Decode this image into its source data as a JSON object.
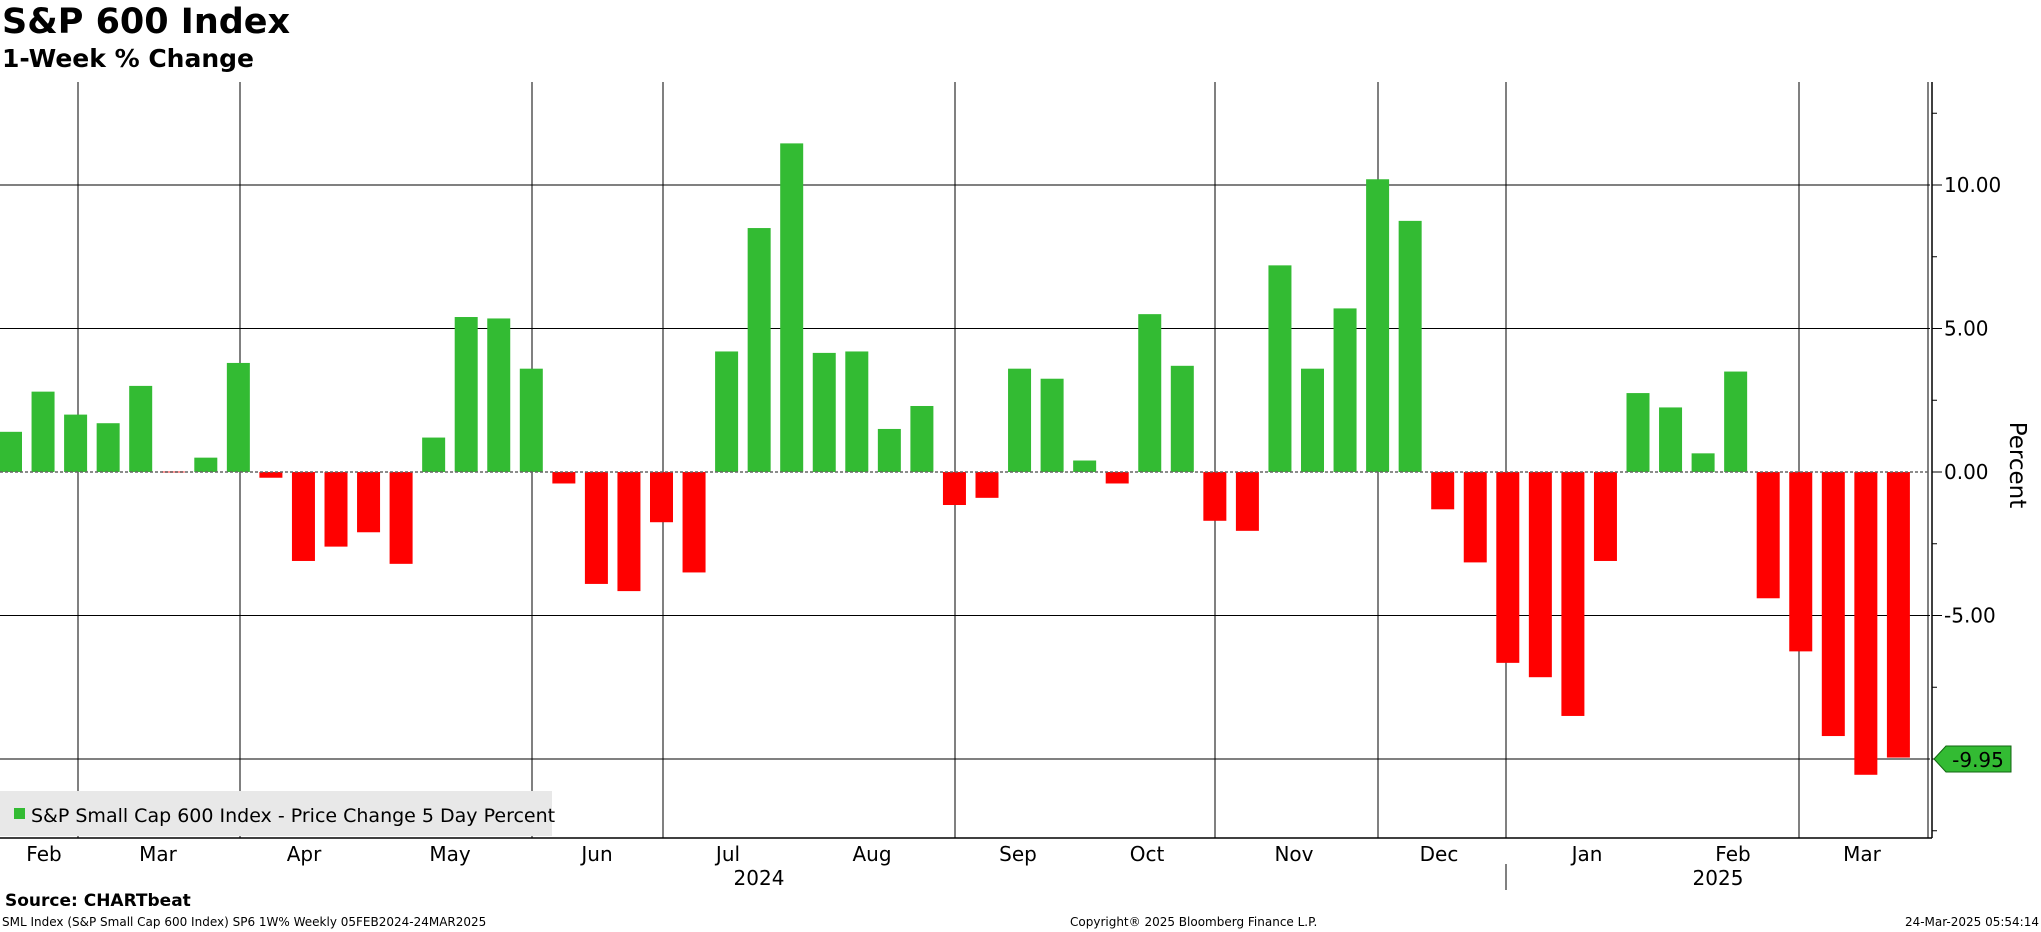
{
  "title": "S&P 600 Index",
  "subtitle": "1-Week % Change",
  "source": "Source: CHARTbeat",
  "footer": {
    "left": "SML Index (S&P Small Cap 600 Index) SP6 1W%  Weekly 05FEB2024-24MAR2025",
    "center": "Copyright® 2025 Bloomberg Finance L.P.",
    "right": "24-Mar-2025 05:54:14"
  },
  "colors": {
    "positive": "#33bb33",
    "negative": "#ff0000",
    "grid": "#000000",
    "last_value_fill": "#33bb33"
  },
  "chart_data": {
    "type": "bar",
    "ylabel": "Percent",
    "ylim": [
      -12.8,
      13.5
    ],
    "y_ticks": [
      "10.00",
      "5.00",
      "0.00",
      "-5.00"
    ],
    "y_tick_values": [
      10,
      5,
      0,
      -5,
      -10
    ],
    "grid": true,
    "legend": {
      "position": "bottom-left",
      "entries": [
        "S&P Small Cap 600 Index - Price Change 5 Day Percent"
      ]
    },
    "last_value_label": "-9.95",
    "month_labels": [
      "Feb",
      "Mar",
      "Apr",
      "May",
      "Jun",
      "Jul",
      "Aug",
      "Sep",
      "Oct",
      "Nov",
      "Dec",
      "Jan",
      "Feb",
      "Mar"
    ],
    "year_labels": [
      "2024",
      "2025"
    ],
    "series": [
      {
        "x": [
          "2024-02-05",
          "2024-02-12",
          "2024-02-19",
          "2024-02-26",
          "2024-03-04",
          "2024-03-11",
          "2024-03-18",
          "2024-03-25",
          "2024-04-01",
          "2024-04-08",
          "2024-04-15",
          "2024-04-22",
          "2024-04-29",
          "2024-05-06",
          "2024-05-13",
          "2024-05-20",
          "2024-05-27",
          "2024-06-03",
          "2024-06-10",
          "2024-06-17",
          "2024-06-24",
          "2024-07-01",
          "2024-07-08",
          "2024-07-15",
          "2024-07-22",
          "2024-07-29",
          "2024-08-05",
          "2024-08-12",
          "2024-08-19",
          "2024-08-26",
          "2024-09-02",
          "2024-09-09",
          "2024-09-16",
          "2024-09-23",
          "2024-09-30",
          "2024-10-07",
          "2024-10-14",
          "2024-10-21",
          "2024-10-28",
          "2024-11-04",
          "2024-11-11",
          "2024-11-18",
          "2024-11-25",
          "2024-12-02",
          "2024-12-09",
          "2024-12-16",
          "2024-12-23",
          "2024-12-30",
          "2025-01-06",
          "2025-01-13",
          "2025-01-20",
          "2025-01-27",
          "2025-02-03",
          "2025-02-10",
          "2025-02-17",
          "2025-02-24",
          "2025-03-03",
          "2025-03-10",
          "2025-03-17"
        ],
        "values": [
          1.4,
          2.8,
          2.0,
          1.7,
          3.0,
          0.0,
          0.5,
          3.8,
          -0.2,
          -3.1,
          -2.6,
          -2.1,
          -3.2,
          1.2,
          5.4,
          5.35,
          3.6,
          -0.4,
          -3.9,
          -4.15,
          -1.75,
          -3.5,
          4.2,
          8.5,
          11.45,
          4.15,
          4.2,
          1.5,
          2.3,
          -1.15,
          -0.9,
          3.6,
          3.25,
          0.4,
          -0.4,
          5.5,
          3.7,
          -1.7,
          -2.05,
          7.2,
          3.6,
          5.7,
          10.2,
          8.75,
          -1.3,
          -3.15,
          -6.65,
          -7.15,
          -8.5,
          -3.1,
          2.75,
          2.25,
          0.65,
          3.5,
          -4.4,
          -6.25,
          -9.2,
          -10.55,
          -9.95
        ]
      }
    ]
  }
}
